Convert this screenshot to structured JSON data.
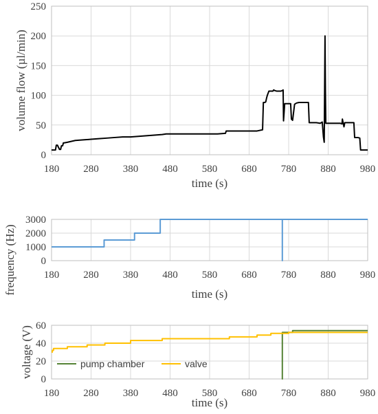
{
  "colors": {
    "flow": "#000000",
    "frequency": "#5b9bd5",
    "pump": "#548235",
    "valve": "#ffc000",
    "grid": "#d9d9d9",
    "text": "#404040"
  },
  "chart_data": [
    {
      "type": "line",
      "xlabel": "time (s)",
      "ylabel": "volume flow (µl/min)",
      "xlim": [
        180,
        980
      ],
      "ylim": [
        0,
        250
      ],
      "xticks": [
        180,
        280,
        380,
        480,
        580,
        680,
        780,
        880,
        980
      ],
      "yticks": [
        0,
        50,
        100,
        150,
        200,
        250
      ],
      "grid": true,
      "series": [
        {
          "color": "#000000",
          "x": [
            180,
            190,
            192,
            195,
            200,
            203,
            205,
            208,
            210,
            212,
            220,
            240,
            260,
            280,
            300,
            320,
            340,
            360,
            380,
            400,
            420,
            440,
            460,
            470,
            480,
            500,
            520,
            540,
            560,
            580,
            600,
            620,
            622,
            640,
            660,
            680,
            700,
            714,
            716,
            720,
            722,
            724,
            726,
            730,
            735,
            740,
            742,
            745,
            750,
            760,
            764,
            766,
            767,
            770,
            780,
            785,
            787,
            790,
            795,
            800,
            806,
            810,
            820,
            830,
            832,
            840,
            850,
            860,
            865,
            868,
            870,
            871,
            872,
            873,
            874,
            875,
            876,
            877,
            880,
            890,
            900,
            910,
            915,
            916,
            920,
            922,
            925,
            930,
            940,
            945,
            947,
            950,
            955,
            960,
            962,
            965,
            970,
            975,
            980
          ],
          "y": [
            8,
            8,
            16,
            16,
            9,
            9,
            15,
            15,
            20,
            20,
            21,
            24,
            25,
            26,
            27,
            28,
            29,
            30,
            30,
            31,
            32,
            33,
            34,
            35,
            35,
            35,
            35,
            35,
            35,
            35,
            35,
            36,
            40,
            40,
            40,
            40,
            40,
            42,
            88,
            88,
            89,
            95,
            100,
            107,
            107,
            107,
            109,
            108,
            107,
            107,
            108,
            109,
            57,
            86,
            86,
            86,
            60,
            58,
            85,
            87,
            88,
            88,
            88,
            88,
            54,
            54,
            54,
            53,
            55,
            30,
            21,
            105,
            200,
            110,
            53,
            53,
            53,
            53,
            53,
            53,
            53,
            53,
            52,
            60,
            47,
            54,
            54,
            54,
            54,
            54,
            29,
            29,
            29,
            28,
            8,
            8,
            8,
            8,
            8
          ]
        }
      ]
    },
    {
      "type": "line",
      "xlabel": "time (s)",
      "ylabel": "frequency (Hz)",
      "xlim": [
        180,
        980
      ],
      "ylim": [
        0,
        3000
      ],
      "xticks": [
        180,
        280,
        380,
        480,
        580,
        680,
        780,
        880,
        980
      ],
      "yticks": [
        0,
        1000,
        2000,
        3000
      ],
      "grid": true,
      "series": [
        {
          "color": "#5b9bd5",
          "x": [
            180,
            313,
            313,
            390,
            390,
            455,
            455,
            764,
            764,
            764,
            764,
            980
          ],
          "y": [
            1000,
            1000,
            1500,
            1500,
            2000,
            2000,
            3000,
            3000,
            0,
            0,
            3000,
            3000
          ]
        }
      ]
    },
    {
      "type": "line",
      "xlabel": "time (s)",
      "ylabel": "voltage (V)",
      "xlim": [
        180,
        980
      ],
      "ylim": [
        0,
        60
      ],
      "xticks": [
        180,
        280,
        380,
        480,
        580,
        680,
        780,
        880,
        980
      ],
      "yticks": [
        0,
        20,
        40,
        60
      ],
      "grid": true,
      "legend": "bottom-left",
      "series": [
        {
          "name": "pump chamber",
          "color": "#548235",
          "x": [
            764,
            764,
            764,
            764,
            790,
            790,
            980
          ],
          "y": [
            52,
            0,
            0,
            52,
            52,
            54,
            54
          ]
        },
        {
          "name": "valve",
          "color": "#ffc000",
          "x": [
            180,
            182,
            182,
            185,
            185,
            220,
            220,
            270,
            270,
            315,
            315,
            380,
            380,
            460,
            460,
            630,
            630,
            700,
            700,
            735,
            735,
            780,
            780,
            980
          ],
          "y": [
            30,
            30,
            32,
            32,
            34,
            34,
            36,
            36,
            38,
            38,
            40,
            40,
            43,
            43,
            45,
            45,
            47,
            47,
            49,
            49,
            51,
            51,
            52,
            52
          ]
        }
      ]
    }
  ]
}
